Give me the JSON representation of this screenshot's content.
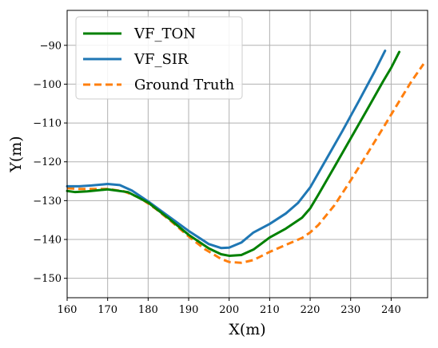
{
  "chart_data": {
    "type": "line",
    "xlabel": "X(m)",
    "ylabel": "Y(m)",
    "xlim": [
      160,
      249
    ],
    "ylim": [
      -155,
      -81
    ],
    "xticks": [
      160,
      170,
      180,
      190,
      200,
      210,
      220,
      230,
      240
    ],
    "yticks": [
      -150,
      -140,
      -130,
      -120,
      -110,
      -100,
      -90
    ],
    "grid": true,
    "legend_position": "top-left",
    "series": [
      {
        "name": "VF_TON",
        "color": "#008000",
        "style": "solid",
        "x": [
          160,
          162,
          165,
          170,
          175,
          180,
          185,
          190,
          195,
          198,
          200,
          203,
          206,
          210,
          214,
          218,
          220,
          222,
          226,
          230,
          234,
          238,
          240,
          242
        ],
        "y": [
          -127.5,
          -127.8,
          -127.6,
          -127.1,
          -127.8,
          -130.5,
          -134.5,
          -138.8,
          -142.3,
          -143.8,
          -144.2,
          -144.0,
          -142.6,
          -139.5,
          -137.2,
          -134.4,
          -132.0,
          -128.5,
          -121.3,
          -114.0,
          -106.7,
          -99.3,
          -95.8,
          -91.7
        ]
      },
      {
        "name": "VF_SIR",
        "color": "#1f77b4",
        "style": "solid",
        "x": [
          160,
          163,
          166,
          170,
          173,
          176,
          180,
          185,
          190,
          195,
          198,
          200,
          203,
          206,
          210,
          214,
          217,
          220,
          224,
          228,
          232,
          236,
          238.5
        ],
        "y": [
          -126.3,
          -126.3,
          -126.1,
          -125.7,
          -126.0,
          -127.4,
          -130.2,
          -134.0,
          -137.8,
          -141.2,
          -142.2,
          -142.1,
          -140.8,
          -138.2,
          -136.0,
          -133.3,
          -130.6,
          -126.6,
          -119.3,
          -112.0,
          -104.4,
          -96.6,
          -91.4
        ]
      },
      {
        "name": "Ground Truth",
        "color": "#ff7f0e",
        "style": "dashed",
        "x": [
          160,
          163,
          166,
          170,
          174,
          178,
          182,
          186,
          190,
          194,
          198,
          200,
          203,
          206,
          210,
          214,
          218,
          220,
          222,
          226,
          230,
          234,
          238,
          242,
          245,
          248
        ],
        "y": [
          -126.8,
          -127.0,
          -127.0,
          -127.0,
          -127.6,
          -129.3,
          -132.2,
          -135.6,
          -139.2,
          -142.5,
          -145.0,
          -145.8,
          -146.0,
          -145.3,
          -143.2,
          -141.4,
          -139.6,
          -138.2,
          -136.3,
          -131.2,
          -124.8,
          -118.1,
          -111.3,
          -104.4,
          -99.3,
          -94.8
        ]
      }
    ]
  }
}
